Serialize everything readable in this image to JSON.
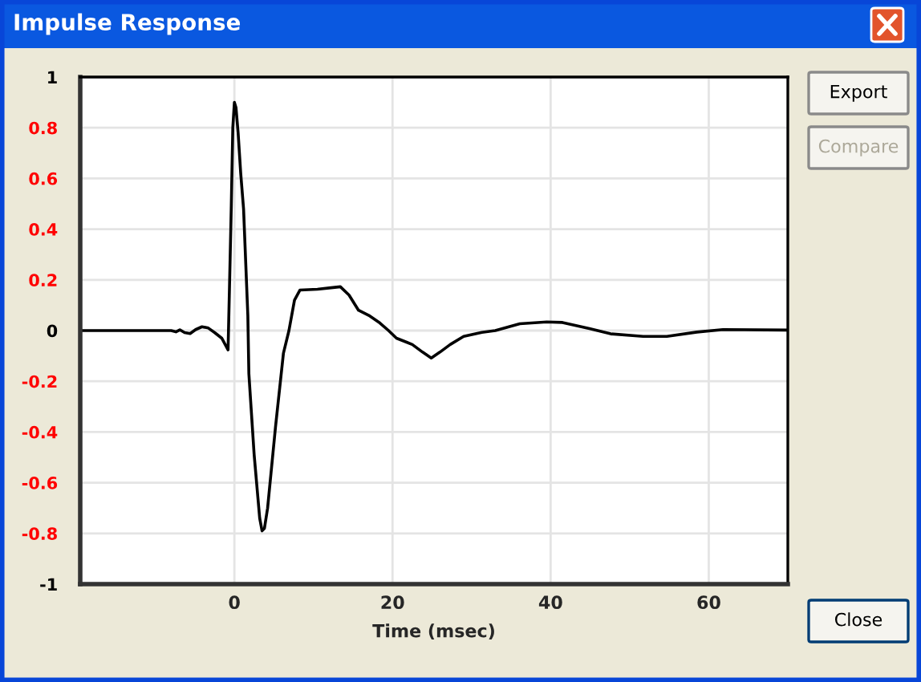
{
  "chart_data": {
    "type": "line",
    "title": "Impulse Response",
    "xlabel": "Time (msec)",
    "x": [
      -19.5,
      -8,
      -7.4,
      -6.9,
      -6.3,
      -5.6,
      -4.9,
      -4.1,
      -3.3,
      -2.5,
      -1.6,
      -0.8,
      -0.6,
      -0.4,
      -0.2,
      0.0,
      0.2,
      0.47,
      0.8,
      1.16,
      1.7,
      1.83,
      2.5,
      3.2,
      3.5,
      3.8,
      4.2,
      5.2,
      6.2,
      6.9,
      7.6,
      8.3,
      10.5,
      12.0,
      13.4,
      14.5,
      15.7,
      17.0,
      18.4,
      19.5,
      20.5,
      22.5,
      23.8,
      24.9,
      26.0,
      27.3,
      29.0,
      31.3,
      33.0,
      36.1,
      39.5,
      41.5,
      44.9,
      47.6,
      51.7,
      54.7,
      58.5,
      61.8,
      70
    ],
    "series": [
      {
        "color": "#000000",
        "values": [
          0,
          0,
          -0.005,
          0.003,
          -0.008,
          -0.012,
          0.004,
          0.015,
          0.01,
          -0.008,
          -0.03,
          -0.076,
          0.2,
          0.48,
          0.8,
          0.9,
          0.88,
          0.78,
          0.62,
          0.48,
          0.06,
          -0.17,
          -0.49,
          -0.74,
          -0.79,
          -0.78,
          -0.7,
          -0.38,
          -0.09,
          0.0,
          0.12,
          0.16,
          0.163,
          0.168,
          0.173,
          0.14,
          0.08,
          0.06,
          0.03,
          0.0,
          -0.03,
          -0.055,
          -0.085,
          -0.108,
          -0.085,
          -0.055,
          -0.023,
          -0.007,
          0.0,
          0.027,
          0.034,
          0.032,
          0.008,
          -0.013,
          -0.023,
          -0.023,
          -0.006,
          0.004,
          0.002
        ]
      }
    ],
    "xlim": [
      -19.5,
      70
    ],
    "ylim": [
      -1,
      1
    ],
    "xticks": [
      0,
      20,
      40,
      60
    ],
    "yticks": [
      -1,
      -0.8,
      -0.6,
      -0.4,
      -0.2,
      0,
      0.2,
      0.4,
      0.6,
      0.8,
      1
    ],
    "grid": true,
    "legend": false,
    "marker": "none",
    "line_style": "solid",
    "annotations": [
      "Export",
      "Compare",
      "Close"
    ]
  }
}
